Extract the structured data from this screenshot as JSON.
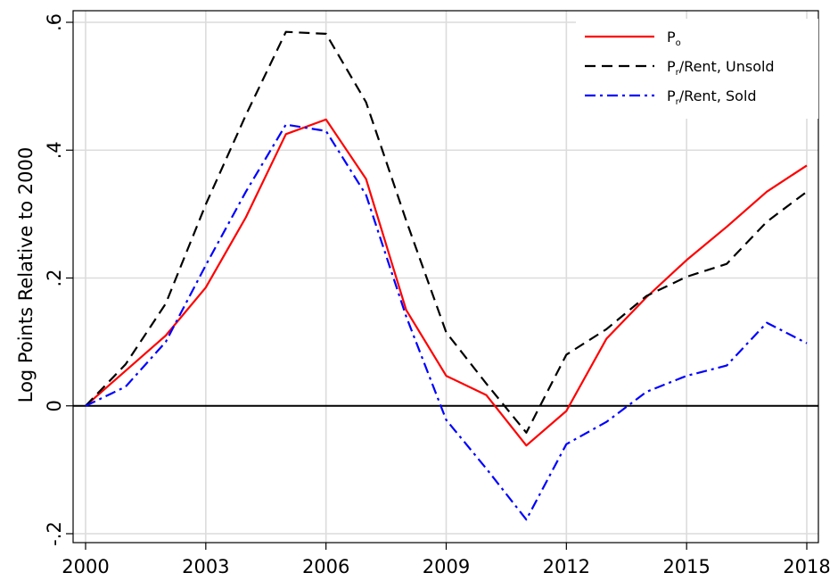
{
  "chart_data": {
    "type": "line",
    "title": "",
    "xlabel": "",
    "ylabel": "Log Points Relative to 2000",
    "xlim": [
      2000,
      2018
    ],
    "ylim": [
      -0.2,
      0.6
    ],
    "x_ticks": [
      2000,
      2003,
      2006,
      2009,
      2012,
      2015,
      2018
    ],
    "x_tick_labels": [
      "2000",
      "2003",
      "2006",
      "2009",
      "2012",
      "2015",
      "2018"
    ],
    "y_ticks": [
      -0.2,
      0,
      0.2,
      0.4,
      0.6
    ],
    "y_tick_labels": [
      "-.2",
      "0",
      ".2",
      ".4",
      ".6"
    ],
    "grid": true,
    "reference_line_y": 0,
    "legend_position": "top-right",
    "x": [
      2000,
      2001,
      2002,
      2003,
      2004,
      2005,
      2006,
      2007,
      2008,
      2009,
      2010,
      2011,
      2012,
      2013,
      2014,
      2015,
      2016,
      2017,
      2018
    ],
    "series": [
      {
        "name": "Po",
        "legend_main": "P",
        "legend_sub": "o",
        "legend_rest": "",
        "color": "#ff0000",
        "dash": "solid",
        "values": [
          0.0,
          0.055,
          0.11,
          0.185,
          0.295,
          0.425,
          0.448,
          0.355,
          0.15,
          0.047,
          0.017,
          -0.062,
          -0.008,
          0.105,
          0.17,
          0.228,
          0.28,
          0.335,
          0.376
        ]
      },
      {
        "name": "Pr/Rent, Unsold",
        "legend_main": "P",
        "legend_sub": "r",
        "legend_rest": "/Rent, Unsold",
        "color": "#000000",
        "dash": "dashed",
        "values": [
          0.0,
          0.065,
          0.16,
          0.315,
          0.455,
          0.585,
          0.582,
          0.475,
          0.29,
          0.115,
          0.035,
          -0.042,
          0.08,
          0.12,
          0.172,
          0.202,
          0.222,
          0.288,
          0.335
        ]
      },
      {
        "name": "Pr/Rent, Sold",
        "legend_main": "P",
        "legend_sub": "r",
        "legend_rest": "/Rent, Sold",
        "color": "#0000ff",
        "dash": "dashdot",
        "values": [
          0.0,
          0.03,
          0.1,
          0.22,
          0.335,
          0.44,
          0.43,
          0.33,
          0.14,
          -0.022,
          -0.098,
          -0.178,
          -0.06,
          -0.025,
          0.022,
          0.047,
          0.063,
          0.13,
          0.098
        ]
      }
    ]
  }
}
